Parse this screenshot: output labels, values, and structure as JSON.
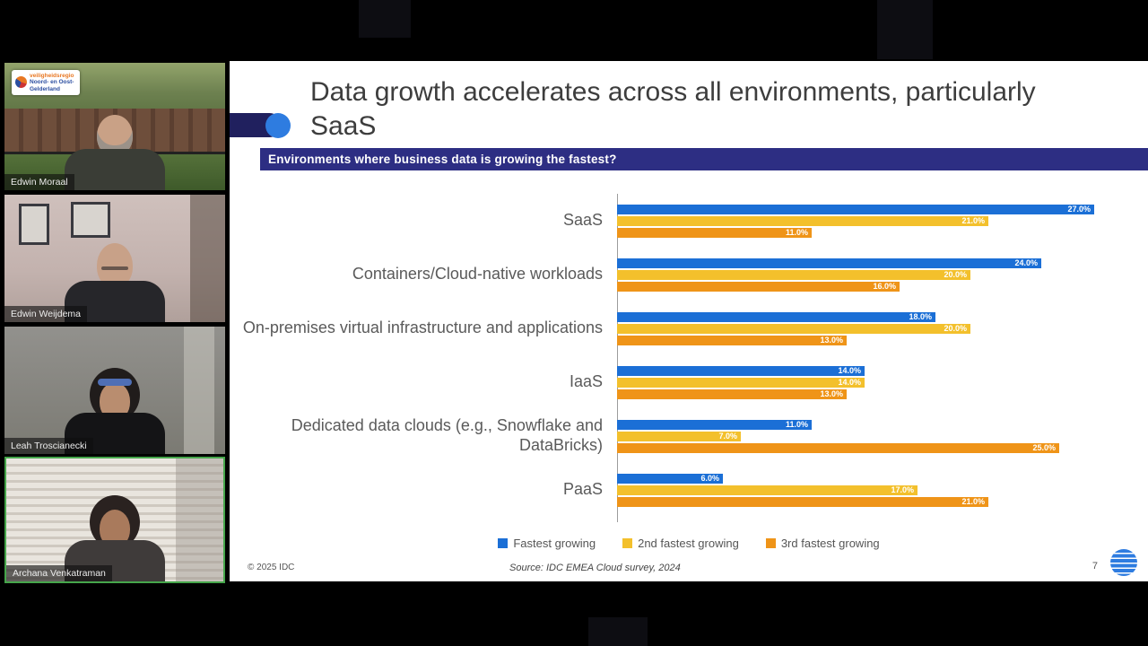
{
  "sidebar": {
    "participants": [
      {
        "name": "Edwin Moraal"
      },
      {
        "name": "Edwin Weijdema"
      },
      {
        "name": "Leah Troscianecki"
      },
      {
        "name": "Archana Venkatraman",
        "active_speaker": true
      }
    ],
    "org_logo": {
      "line1": "veiligheidsregio",
      "line2": "Noord- en Oost-",
      "line3": "Gelderland"
    }
  },
  "slide": {
    "title": "Data growth accelerates across all environments, particularly SaaS",
    "banner": "Environments where business data is growing the fastest?",
    "copyright": "© 2025 IDC",
    "source": "Source: IDC EMEA Cloud survey, 2024",
    "page_number": "7"
  },
  "chart_data": {
    "type": "bar",
    "orientation": "horizontal",
    "title": "Environments where business data is growing the fastest?",
    "categories": [
      "SaaS",
      "Containers/Cloud-native workloads",
      "On-premises virtual infrastructure and applications",
      "IaaS",
      "Dedicated data clouds (e.g., Snowflake and DataBricks)",
      "PaaS"
    ],
    "series": [
      {
        "name": "Fastest growing",
        "color": "#1b6fd6",
        "values": [
          27,
          24,
          18,
          14,
          11,
          6
        ]
      },
      {
        "name": "2nd fastest growing",
        "color": "#f3c02c",
        "values": [
          21,
          20,
          20,
          14,
          7,
          17
        ]
      },
      {
        "name": "3rd fastest growing",
        "color": "#ef9418",
        "values": [
          11,
          16,
          13,
          13,
          25,
          21
        ]
      }
    ],
    "value_suffix": "%",
    "value_decimals": 1,
    "xlim": [
      0,
      28
    ],
    "grid": false,
    "legend_position": "bottom"
  }
}
